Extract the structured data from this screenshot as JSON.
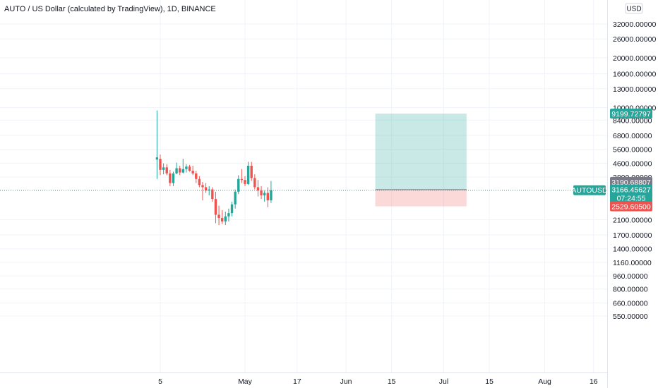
{
  "header": {
    "title": "AUTO / US Dollar (calculated by TradingView), 1D, BINANCE"
  },
  "chart_data": {
    "type": "candlestick",
    "title": "AUTO / US Dollar (calculated by TradingView), 1D, BINANCE",
    "y_scale": "log",
    "grid": true,
    "currency_unit": "USD",
    "y_ticks": [
      "32000.00000",
      "26000.00000",
      "20000.00000",
      "16000.00000",
      "13000.00000",
      "10000.00000",
      "8400.00000",
      "6800.00000",
      "5600.00000",
      "4600.00000",
      "3800.00000",
      "2100.00000",
      "1700.00000",
      "1400.00000",
      "1160.00000",
      "960.00000",
      "800.00000",
      "660.00000",
      "550.00000"
    ],
    "y_tick_values": [
      32000,
      26000,
      20000,
      16000,
      13000,
      10000,
      8400,
      6800,
      5600,
      4600,
      3800,
      2100,
      1700,
      1400,
      1160,
      960,
      800,
      660,
      550
    ],
    "x_ticks": [
      "5",
      "May",
      "17",
      "Jun",
      "15",
      "Jul",
      "15",
      "Aug",
      "16"
    ],
    "x_tick_dates": [
      "2021-04-05",
      "2021-05-01",
      "2021-05-17",
      "2021-06-01",
      "2021-06-15",
      "2021-07-01",
      "2021-07-15",
      "2021-08-01",
      "2021-08-16"
    ],
    "candles": [
      {
        "date": "2021-04-04",
        "o": 4850,
        "h": 9600,
        "l": 3700,
        "c": 5000
      },
      {
        "date": "2021-04-05",
        "o": 4900,
        "h": 5200,
        "l": 3900,
        "c": 4200
      },
      {
        "date": "2021-04-06",
        "o": 4200,
        "h": 4600,
        "l": 3950,
        "c": 4350
      },
      {
        "date": "2021-04-07",
        "o": 4350,
        "h": 4550,
        "l": 3900,
        "c": 4000
      },
      {
        "date": "2021-04-08",
        "o": 4000,
        "h": 4200,
        "l": 3350,
        "c": 3500
      },
      {
        "date": "2021-04-09",
        "o": 3500,
        "h": 4100,
        "l": 3350,
        "c": 4000
      },
      {
        "date": "2021-04-10",
        "o": 4000,
        "h": 4650,
        "l": 3950,
        "c": 4300
      },
      {
        "date": "2021-04-11",
        "o": 4300,
        "h": 4450,
        "l": 3900,
        "c": 4050
      },
      {
        "date": "2021-04-12",
        "o": 4050,
        "h": 4900,
        "l": 4000,
        "c": 4250
      },
      {
        "date": "2021-04-13",
        "o": 4250,
        "h": 4550,
        "l": 4050,
        "c": 4400
      },
      {
        "date": "2021-04-14",
        "o": 4400,
        "h": 4500,
        "l": 4100,
        "c": 4150
      },
      {
        "date": "2021-04-15",
        "o": 4150,
        "h": 4450,
        "l": 3900,
        "c": 4000
      },
      {
        "date": "2021-04-16",
        "o": 4000,
        "h": 4150,
        "l": 3500,
        "c": 3700
      },
      {
        "date": "2021-04-17",
        "o": 3700,
        "h": 3850,
        "l": 3300,
        "c": 3400
      },
      {
        "date": "2021-04-18",
        "o": 3400,
        "h": 3550,
        "l": 2750,
        "c": 3300
      },
      {
        "date": "2021-04-19",
        "o": 3300,
        "h": 3500,
        "l": 3050,
        "c": 3150
      },
      {
        "date": "2021-04-20",
        "o": 3150,
        "h": 3350,
        "l": 2950,
        "c": 3200
      },
      {
        "date": "2021-04-21",
        "o": 3200,
        "h": 3300,
        "l": 2700,
        "c": 2800
      },
      {
        "date": "2021-04-22",
        "o": 2800,
        "h": 3100,
        "l": 2000,
        "c": 2250
      },
      {
        "date": "2021-04-23",
        "o": 2250,
        "h": 2550,
        "l": 1950,
        "c": 2150
      },
      {
        "date": "2021-04-24",
        "o": 2150,
        "h": 2400,
        "l": 1980,
        "c": 2050
      },
      {
        "date": "2021-04-25",
        "o": 2050,
        "h": 2350,
        "l": 1950,
        "c": 2200
      },
      {
        "date": "2021-04-26",
        "o": 2200,
        "h": 2450,
        "l": 2050,
        "c": 2300
      },
      {
        "date": "2021-04-27",
        "o": 2300,
        "h": 2700,
        "l": 2200,
        "c": 2600
      },
      {
        "date": "2021-04-28",
        "o": 2600,
        "h": 3200,
        "l": 2450,
        "c": 3100
      },
      {
        "date": "2021-04-29",
        "o": 3100,
        "h": 3900,
        "l": 3000,
        "c": 3700
      },
      {
        "date": "2021-04-30",
        "o": 3700,
        "h": 4250,
        "l": 3500,
        "c": 3650
      },
      {
        "date": "2021-05-01",
        "o": 3650,
        "h": 3850,
        "l": 3350,
        "c": 3450
      },
      {
        "date": "2021-05-02",
        "o": 3450,
        "h": 4700,
        "l": 3400,
        "c": 4450
      },
      {
        "date": "2021-05-03",
        "o": 4450,
        "h": 4700,
        "l": 3600,
        "c": 3750
      },
      {
        "date": "2021-05-04",
        "o": 3750,
        "h": 3950,
        "l": 3200,
        "c": 3300
      },
      {
        "date": "2021-05-05",
        "o": 3300,
        "h": 3650,
        "l": 2900,
        "c": 3150
      },
      {
        "date": "2021-05-06",
        "o": 3150,
        "h": 3350,
        "l": 2800,
        "c": 2950
      },
      {
        "date": "2021-05-07",
        "o": 2950,
        "h": 3150,
        "l": 2700,
        "c": 3050
      },
      {
        "date": "2021-05-08",
        "o": 3050,
        "h": 3300,
        "l": 2500,
        "c": 2750
      },
      {
        "date": "2021-05-09",
        "o": 2750,
        "h": 3600,
        "l": 2650,
        "c": 3166.45627
      }
    ],
    "last_price": {
      "symbol": "AUTOUSD",
      "value": "3166.45627",
      "numeric": 3166.45627,
      "countdown": "07:24:55",
      "color": "#26a69a"
    },
    "position": {
      "entry": "3190.68807",
      "entry_numeric": 3190.68807,
      "target": "9199.72797",
      "target_numeric": 9199.72797,
      "stop": "2529.60500",
      "stop_numeric": 2529.605,
      "start_date": "2021-06-10",
      "end_date": "2021-07-08",
      "profit_color": "#26a69a",
      "loss_color": "#ef5350",
      "entry_color": "#787b86"
    },
    "colors": {
      "up": "#26a69a",
      "down": "#ef5350",
      "grid": "#f0f3fa"
    }
  }
}
